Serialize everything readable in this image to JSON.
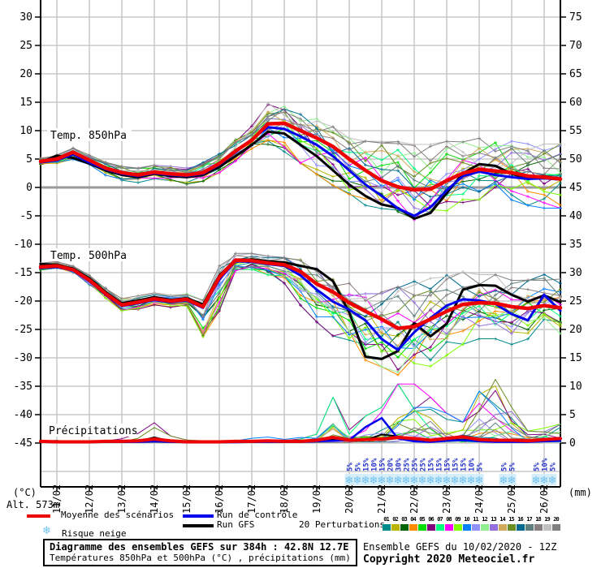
{
  "chart": {
    "altitude_label": "Alt. 573m",
    "left_axis": {
      "unit": "(°C)",
      "ticks": [
        30,
        25,
        20,
        15,
        10,
        5,
        0,
        -5,
        -10,
        -15,
        -20,
        -25,
        -30,
        -35,
        -40,
        -45
      ]
    },
    "right_axis": {
      "unit": "(mm)",
      "ticks": [
        75,
        70,
        65,
        60,
        55,
        50,
        45,
        40,
        35,
        30,
        25,
        20,
        15,
        10,
        5,
        0
      ]
    },
    "x_axis": {
      "dates": [
        "11/02",
        "12/02",
        "13/02",
        "14/02",
        "15/02",
        "16/02",
        "17/02",
        "18/02",
        "19/02",
        "20/02",
        "21/02",
        "22/02",
        "23/02",
        "24/02",
        "25/02",
        "26/02"
      ]
    },
    "panel_labels": {
      "t850": "Temp. 850hPa",
      "t500": "Temp. 500hPa",
      "precip": "Précipitations"
    }
  },
  "chart_data": {
    "type": "line",
    "x_hours": [
      0,
      12,
      24,
      36,
      48,
      60,
      72,
      84,
      96,
      108,
      120,
      132,
      144,
      156,
      168,
      180,
      192,
      204,
      216,
      228,
      240,
      252,
      264,
      276,
      288,
      300,
      312,
      324,
      336,
      348,
      360,
      372,
      384
    ],
    "temp850": {
      "mean": [
        4.6,
        5.0,
        6.2,
        4.8,
        3.4,
        2.6,
        2.2,
        2.7,
        2.4,
        2.2,
        2.6,
        4.2,
        6.4,
        8.3,
        11.2,
        11.3,
        10.0,
        8.7,
        7.2,
        5.0,
        3.0,
        1.2,
        0.1,
        -0.4,
        -0.3,
        1.2,
        2.5,
        3.2,
        2.9,
        2.6,
        2.0,
        1.8,
        1.5
      ],
      "control": [
        4.4,
        4.8,
        5.8,
        4.4,
        3.2,
        2.4,
        2.0,
        2.5,
        2.2,
        2.0,
        2.4,
        4.0,
        6.2,
        8.5,
        10.6,
        10.3,
        9.0,
        7.5,
        5.5,
        3.0,
        0.5,
        -1.5,
        -3.7,
        -5.0,
        -3.5,
        -0.5,
        2.0,
        2.8,
        2.2,
        1.8,
        1.5,
        1.6,
        1.4
      ],
      "gfs": [
        4.4,
        5.6,
        5.2,
        4.2,
        3.0,
        2.2,
        1.8,
        2.4,
        2.0,
        1.8,
        2.2,
        3.6,
        5.5,
        7.5,
        9.8,
        9.5,
        7.5,
        5.5,
        3.0,
        0.5,
        -1.5,
        -3.0,
        -3.6,
        -5.5,
        -4.5,
        -1.0,
        2.5,
        4.1,
        3.8,
        2.4,
        1.6,
        2.0,
        1.4
      ],
      "spread_min": [
        4.0,
        4.2,
        4.8,
        3.5,
        2.0,
        1.0,
        0.5,
        1.0,
        0.8,
        0.5,
        1.0,
        2.5,
        4.5,
        6.0,
        7.0,
        6.0,
        4.0,
        2.0,
        0.0,
        -2.0,
        -3.5,
        -5.0,
        -6.0,
        -6.5,
        -6.0,
        -4.5,
        -3.0,
        -2.5,
        -3.0,
        -3.5,
        -3.5,
        -4.0,
        -4.0
      ],
      "spread_max": [
        5.2,
        5.8,
        7.0,
        5.8,
        4.5,
        3.8,
        3.5,
        4.0,
        3.8,
        3.5,
        4.5,
        6.0,
        8.5,
        11.0,
        15.5,
        16.0,
        14.5,
        13.0,
        11.0,
        9.0,
        8.5,
        8.5,
        8.5,
        8.0,
        8.0,
        8.5,
        9.0,
        9.0,
        9.0,
        8.5,
        8.0,
        8.0,
        8.0
      ]
    },
    "temp500": {
      "mean": [
        -14.0,
        -13.8,
        -14.5,
        -16.3,
        -18.7,
        -20.7,
        -20.2,
        -19.6,
        -20.0,
        -19.7,
        -21.0,
        -15.8,
        -12.8,
        -12.9,
        -13.3,
        -13.6,
        -14.8,
        -17.0,
        -18.4,
        -20.3,
        -21.8,
        -23.2,
        -24.8,
        -24.5,
        -23.2,
        -21.8,
        -20.6,
        -20.3,
        -20.4,
        -21.0,
        -21.3,
        -20.8,
        -21.2
      ],
      "control": [
        -14.2,
        -14.0,
        -14.6,
        -16.5,
        -18.9,
        -20.9,
        -20.4,
        -19.8,
        -20.2,
        -19.9,
        -21.2,
        -16.2,
        -13.0,
        -13.1,
        -13.5,
        -13.8,
        -15.5,
        -18.0,
        -20.1,
        -21.5,
        -23.4,
        -26.7,
        -28.6,
        -25.5,
        -23.0,
        -20.8,
        -19.7,
        -19.9,
        -20.5,
        -22.3,
        -23.4,
        -18.9,
        -21.7
      ],
      "gfs": [
        -13.5,
        -13.6,
        -14.3,
        -16.0,
        -18.4,
        -20.4,
        -19.9,
        -19.3,
        -19.8,
        -19.5,
        -20.6,
        -15.5,
        -12.7,
        -12.7,
        -13.0,
        -13.2,
        -13.8,
        -14.4,
        -16.5,
        -22.0,
        -29.8,
        -30.2,
        -28.8,
        -23.9,
        -26.2,
        -24.0,
        -18.0,
        -17.2,
        -17.3,
        -18.9,
        -20.1,
        -19.0,
        -20.2
      ],
      "spread_min": [
        -14.6,
        -14.4,
        -15.2,
        -17.2,
        -19.6,
        -21.8,
        -21.5,
        -20.8,
        -21.2,
        -21.0,
        -26.5,
        -22.0,
        -15.0,
        -14.5,
        -15.5,
        -17.0,
        -21.0,
        -24.0,
        -26.5,
        -29.0,
        -31.0,
        -32.0,
        -33.5,
        -34.0,
        -32.0,
        -30.0,
        -28.0,
        -27.0,
        -27.0,
        -28.0,
        -27.0,
        -26.0,
        -27.0
      ],
      "spread_max": [
        -13.3,
        -13.0,
        -13.8,
        -15.4,
        -17.6,
        -19.5,
        -19.0,
        -18.5,
        -18.8,
        -18.5,
        -19.0,
        -13.5,
        -11.5,
        -11.5,
        -12.0,
        -12.2,
        -12.5,
        -13.5,
        -14.5,
        -16.0,
        -17.0,
        -18.0,
        -17.0,
        -16.0,
        -15.5,
        -15.0,
        -14.5,
        -15.0,
        -15.0,
        -16.0,
        -16.0,
        -15.0,
        -15.5
      ]
    },
    "precip_mm": {
      "mean": [
        0.3,
        0.2,
        0.2,
        0.2,
        0.3,
        0.3,
        0.4,
        0.7,
        0.4,
        0.2,
        0.2,
        0.2,
        0.3,
        0.3,
        0.4,
        0.3,
        0.3,
        0.5,
        1.0,
        0.5,
        0.6,
        0.7,
        1.0,
        0.8,
        0.5,
        0.8,
        1.1,
        0.6,
        0.5,
        0.5,
        0.4,
        0.6,
        0.8
      ],
      "control": [
        0.2,
        0.1,
        0.1,
        0.1,
        0.2,
        0.2,
        0.2,
        0.3,
        0.2,
        0.1,
        0.1,
        0.1,
        0.1,
        0.2,
        0.2,
        0.2,
        0.2,
        0.3,
        0.4,
        0.5,
        2.8,
        4.4,
        0.8,
        0.3,
        0.2,
        0.4,
        0.5,
        0.3,
        0.2,
        0.2,
        0.2,
        0.3,
        0.4
      ],
      "gfs": [
        0.3,
        0.4,
        0.2,
        0.1,
        0.2,
        0.2,
        0.3,
        1.0,
        0.3,
        0.1,
        0.1,
        0.1,
        0.2,
        0.2,
        0.3,
        0.2,
        0.2,
        0.4,
        0.6,
        0.4,
        0.5,
        1.5,
        1.2,
        0.5,
        0.3,
        0.5,
        0.6,
        0.4,
        0.3,
        0.3,
        0.2,
        0.3,
        0.5
      ],
      "spread_max": [
        0.8,
        0.6,
        0.5,
        0.4,
        0.6,
        0.8,
        1.6,
        3.4,
        1.2,
        0.5,
        0.4,
        0.5,
        0.6,
        0.8,
        1.0,
        0.8,
        1.2,
        1.5,
        7.7,
        2.2,
        4.5,
        6.0,
        9.9,
        9.9,
        7.7,
        5.0,
        3.5,
        8.7,
        10.9,
        6.0,
        2.0,
        2.5,
        3.2
      ]
    },
    "snow_risk": [
      {
        "hour": 228,
        "percent": 5
      },
      {
        "hour": 234,
        "percent": 5
      },
      {
        "hour": 240,
        "percent": 15
      },
      {
        "hour": 246,
        "percent": 10
      },
      {
        "hour": 252,
        "percent": 15
      },
      {
        "hour": 258,
        "percent": 20
      },
      {
        "hour": 264,
        "percent": 30
      },
      {
        "hour": 270,
        "percent": 25
      },
      {
        "hour": 276,
        "percent": 25
      },
      {
        "hour": 282,
        "percent": 25
      },
      {
        "hour": 288,
        "percent": 15
      },
      {
        "hour": 294,
        "percent": 15
      },
      {
        "hour": 300,
        "percent": 15
      },
      {
        "hour": 306,
        "percent": 15
      },
      {
        "hour": 312,
        "percent": 15
      },
      {
        "hour": 318,
        "percent": 10
      },
      {
        "hour": 324,
        "percent": 5
      },
      {
        "hour": 342,
        "percent": 5
      },
      {
        "hour": 348,
        "percent": 5
      },
      {
        "hour": 366,
        "percent": 5
      },
      {
        "hour": 372,
        "percent": 10
      },
      {
        "hour": 378,
        "percent": 5
      }
    ],
    "axis_ranges": {
      "temp_c": [
        -45,
        30
      ],
      "precip_mm": [
        0,
        75
      ],
      "hours": [
        0,
        384
      ]
    }
  },
  "legend": {
    "mean_label": "Moyenne des scénarios",
    "control_label": "Run de contrôle",
    "gfs_label": "Run GFS",
    "snow_label": "Risque neige",
    "snow_icon": "❄",
    "perturbations_label": "20 Perturbations",
    "members": [
      {
        "id": "01",
        "color": "#008B8B"
      },
      {
        "id": "02",
        "color": "#B8B400"
      },
      {
        "id": "03",
        "color": "#006400"
      },
      {
        "id": "04",
        "color": "#FF8C00"
      },
      {
        "id": "05",
        "color": "#00DD00"
      },
      {
        "id": "06",
        "color": "#800080"
      },
      {
        "id": "07",
        "color": "#00FF7F"
      },
      {
        "id": "08",
        "color": "#FF00FF"
      },
      {
        "id": "09",
        "color": "#7FFF00"
      },
      {
        "id": "10",
        "color": "#0080FF"
      },
      {
        "id": "11",
        "color": "#9090FF"
      },
      {
        "id": "12",
        "color": "#90EE90"
      },
      {
        "id": "13",
        "color": "#9370DB"
      },
      {
        "id": "14",
        "color": "#D2A85A"
      },
      {
        "id": "15",
        "color": "#6B8E23"
      },
      {
        "id": "16",
        "color": "#006B8F"
      },
      {
        "id": "17",
        "color": "#5F7F7F"
      },
      {
        "id": "18",
        "color": "#8A7F7F"
      },
      {
        "id": "19",
        "color": "#C0C0C0"
      },
      {
        "id": "20",
        "color": "#808080"
      }
    ]
  },
  "colors": {
    "mean": "#EE0000",
    "control": "#0000EE",
    "gfs": "#000000",
    "grid": "#C8C8C8",
    "zero_line": "#9A9A9A",
    "axis": "#000000",
    "snow_flake": "#6FC0EE",
    "snow_band": "#D6EEF8",
    "snow_text": "#2230C8"
  },
  "footer": {
    "title": "Diagramme des ensembles GEFS sur 384h : 42.8N 12.7E",
    "subtitle": "Températures 850hPa et 500hPa (°C) , précipitations (mm)",
    "run_info": "Ensemble GEFS du 10/02/2020 - 12Z",
    "copyright": "Copyright 2020 Meteociel.fr"
  }
}
